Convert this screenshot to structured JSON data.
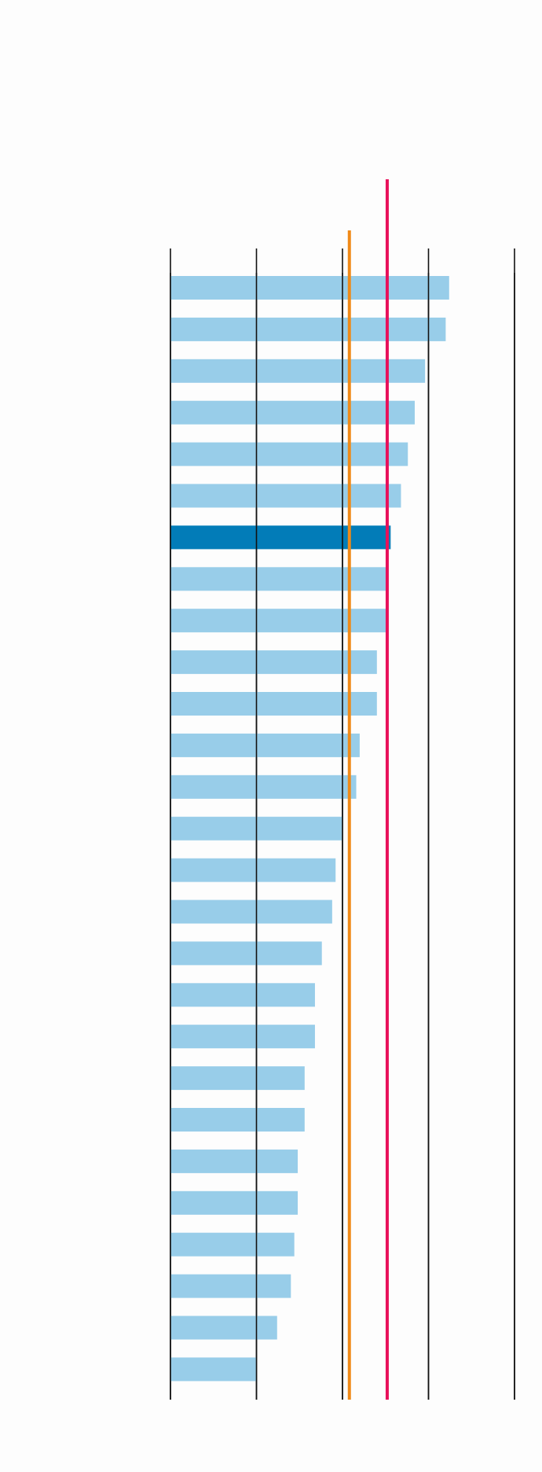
{
  "chart_data": {
    "type": "bar",
    "orientation": "horizontal",
    "title": "",
    "xlabel": "",
    "ylabel": "",
    "grid": true,
    "xlim": [
      0,
      100
    ],
    "gridlines": [
      0,
      25,
      50,
      75,
      100
    ],
    "values": [
      81,
      80,
      74,
      71,
      69,
      67,
      64,
      63,
      63,
      60,
      60,
      55,
      54,
      50,
      48,
      47,
      44,
      42,
      42,
      39,
      39,
      37,
      37,
      36,
      35,
      31,
      25
    ],
    "highlight_index": 6,
    "reference_lines": [
      {
        "value": 52,
        "color": "#f08a18"
      },
      {
        "value": 63,
        "color": "#e8105a"
      }
    ],
    "colors": {
      "bar": "#98cde9",
      "highlight": "#027cb8",
      "gridline": "#111111"
    }
  }
}
